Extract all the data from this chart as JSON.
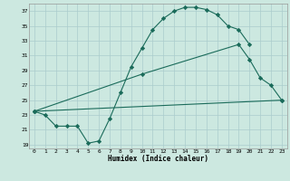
{
  "xlabel": "Humidex (Indice chaleur)",
  "ylabel": "",
  "background_color": "#cce8e0",
  "grid_color": "#aacccc",
  "line_color": "#1a6b5a",
  "xlim": [
    -0.5,
    23.5
  ],
  "ylim": [
    18.5,
    38.0
  ],
  "yticks": [
    19,
    21,
    23,
    25,
    27,
    29,
    31,
    33,
    35,
    37
  ],
  "xticks": [
    0,
    1,
    2,
    3,
    4,
    5,
    6,
    7,
    8,
    9,
    10,
    11,
    12,
    13,
    14,
    15,
    16,
    17,
    18,
    19,
    20,
    21,
    22,
    23
  ],
  "series": [
    {
      "x": [
        0,
        1,
        2,
        3,
        4,
        5,
        6,
        7,
        8,
        9,
        10,
        11,
        12,
        13,
        14,
        15,
        16,
        17,
        18,
        19,
        20
      ],
      "y": [
        23.5,
        23.0,
        21.5,
        21.5,
        21.5,
        19.2,
        19.5,
        22.5,
        26.0,
        29.5,
        32.0,
        34.5,
        36.0,
        37.0,
        37.5,
        37.5,
        37.2,
        36.5,
        35.0,
        34.5,
        32.5
      ]
    },
    {
      "x": [
        0,
        10,
        19,
        20,
        21,
        22,
        23
      ],
      "y": [
        23.5,
        28.5,
        32.5,
        30.5,
        28.0,
        27.0,
        25.0
      ]
    },
    {
      "x": [
        0,
        23
      ],
      "y": [
        23.5,
        25.0
      ]
    }
  ]
}
